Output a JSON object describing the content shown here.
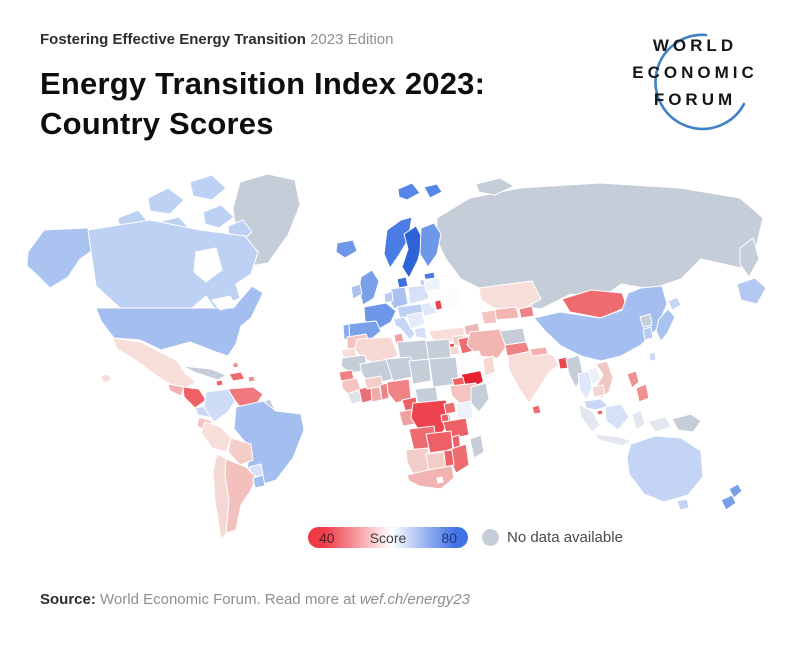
{
  "header": {
    "eyebrow_bold": "Fostering Effective Energy Transition",
    "eyebrow_regular": "2023 Edition",
    "title_line1": "Energy Transition Index 2023:",
    "title_line2": "Country Scores"
  },
  "logo": {
    "line1": "WORLD",
    "line2": "ECONOMIC",
    "line3": "FORUM",
    "arc_color": "#3f82c4"
  },
  "legend": {
    "min_label": "40",
    "mid_label": "Score",
    "max_label": "80",
    "color_low": "#ee3b47",
    "color_mid": "#ffffff",
    "color_high": "#4273e6",
    "no_data_label": "No data available",
    "no_data_color": "#c5cdd9"
  },
  "source": {
    "prefix": "Source:",
    "text": " World Economic Forum. Read more at ",
    "link": "wef.ch/energy23"
  },
  "chart_data": {
    "type": "choropleth_map",
    "title": "Energy Transition Index 2023: Country Scores",
    "scale": {
      "min": 40,
      "max": 80,
      "mid_is_white": true,
      "low_color": "#ee3b47",
      "high_color": "#4273e6",
      "no_data_color": "#c5cdd9"
    },
    "regions": [
      {
        "id": "russia",
        "name": "Russia",
        "color": "#c5cdd9"
      },
      {
        "id": "novaya_zemlya",
        "name": "Novaya Zemlya",
        "color": "#c5cdd9"
      },
      {
        "id": "kamchatka",
        "name": "Kamchatka",
        "color": "#c5cdd9"
      },
      {
        "id": "far_east_patch",
        "name": "Russian Far East blue patch",
        "color": "#b3c8f2"
      },
      {
        "id": "greenland",
        "name": "Greenland",
        "color": "#c5cdd9"
      },
      {
        "id": "canada_arctic_1",
        "name": "Canadian Arctic islands",
        "color": "#bdd1f5"
      },
      {
        "id": "canada_arctic_2",
        "name": "Canadian Arctic islands",
        "color": "#bdd1f5"
      },
      {
        "id": "canada_arctic_3",
        "name": "Canadian Arctic islands",
        "color": "#bdd1f5"
      },
      {
        "id": "canada_arctic_4",
        "name": "Canadian Arctic islands",
        "color": "#bdd1f5"
      },
      {
        "id": "canada_arctic_5",
        "name": "Canadian Arctic islands",
        "color": "#bdd1f5"
      },
      {
        "id": "canada_arctic_6",
        "name": "Canadian Arctic islands",
        "color": "#bdd1f5"
      },
      {
        "id": "alaska",
        "name": "Alaska (United States)",
        "color": "#abc3f1"
      },
      {
        "id": "canada",
        "name": "Canada",
        "color": "#bdd1f5"
      },
      {
        "id": "hudson_bay",
        "name": "Hudson Bay (water)",
        "color": "#ffffff"
      },
      {
        "id": "usa",
        "name": "United States",
        "color": "#a4bef0"
      },
      {
        "id": "great_lakes",
        "name": "Great Lakes (water)",
        "color": "#ffffff"
      },
      {
        "id": "hawaii",
        "name": "Hawaii",
        "color": "#f6dcd8"
      },
      {
        "id": "mexico",
        "name": "Mexico",
        "color": "#f8ded9"
      },
      {
        "id": "guatemala",
        "name": "Guatemala",
        "color": "#f2b0ae"
      },
      {
        "id": "honduras_nicaragua",
        "name": "Honduras / Nicaragua",
        "color": "#ee5f66"
      },
      {
        "id": "costa_rica_panama",
        "name": "Costa Rica / Panama",
        "color": "#c9d8f6"
      },
      {
        "id": "cuba",
        "name": "Cuba",
        "color": "#c5cdd9"
      },
      {
        "id": "hispaniola",
        "name": "Dominican Republic / Haiti",
        "color": "#ee6b6f"
      },
      {
        "id": "jamaica",
        "name": "Jamaica",
        "color": "#ee5f66"
      },
      {
        "id": "puerto_rico",
        "name": "Puerto Rico",
        "color": "#f0908f"
      },
      {
        "id": "trinidad",
        "name": "Trinidad and Tobago",
        "color": "#ee5f66"
      },
      {
        "id": "bahamas",
        "name": "Bahamas",
        "color": "#f0908f"
      },
      {
        "id": "colombia",
        "name": "Colombia",
        "color": "#cedcf7"
      },
      {
        "id": "venezuela",
        "name": "Venezuela",
        "color": "#f0797e"
      },
      {
        "id": "guyana_suriname",
        "name": "Guyana / Suriname",
        "color": "#c5cdd9"
      },
      {
        "id": "ecuador",
        "name": "Ecuador",
        "color": "#f4c4c0"
      },
      {
        "id": "peru",
        "name": "Peru",
        "color": "#f8ded9"
      },
      {
        "id": "brazil",
        "name": "Brazil",
        "color": "#a4bef0"
      },
      {
        "id": "bolivia",
        "name": "Bolivia",
        "color": "#f5cdc8"
      },
      {
        "id": "paraguay",
        "name": "Paraguay",
        "color": "#d6e1f8"
      },
      {
        "id": "chile",
        "name": "Chile",
        "color": "#f5d8d3"
      },
      {
        "id": "argentina",
        "name": "Argentina",
        "color": "#f3c1bd"
      },
      {
        "id": "uruguay",
        "name": "Uruguay",
        "color": "#a4bef0"
      },
      {
        "id": "iceland",
        "name": "Iceland",
        "color": "#6f97e9"
      },
      {
        "id": "svalbard_1",
        "name": "Svalbard",
        "color": "#5585e6"
      },
      {
        "id": "svalbard_2",
        "name": "Svalbard",
        "color": "#5585e6"
      },
      {
        "id": "norway",
        "name": "Norway",
        "color": "#4a7ce4"
      },
      {
        "id": "sweden",
        "name": "Sweden",
        "color": "#2e63d8"
      },
      {
        "id": "finland",
        "name": "Finland",
        "color": "#6f97e9"
      },
      {
        "id": "denmark",
        "name": "Denmark",
        "color": "#3b6fdd"
      },
      {
        "id": "estonia",
        "name": "Estonia",
        "color": "#4a7ce4"
      },
      {
        "id": "latvia_lithuania",
        "name": "Latvia / Lithuania",
        "color": "#b8ccf3"
      },
      {
        "id": "uk",
        "name": "United Kingdom",
        "color": "#7ba0ea"
      },
      {
        "id": "ireland",
        "name": "Ireland",
        "color": "#a9c0f0"
      },
      {
        "id": "france",
        "name": "France",
        "color": "#6f97e9"
      },
      {
        "id": "spain",
        "name": "Spain",
        "color": "#7ba0ea"
      },
      {
        "id": "portugal",
        "name": "Portugal",
        "color": "#8cabee"
      },
      {
        "id": "germany",
        "name": "Germany",
        "color": "#a9c0f0"
      },
      {
        "id": "benelux",
        "name": "Benelux",
        "color": "#b8ccf3"
      },
      {
        "id": "poland",
        "name": "Poland",
        "color": "#d6e1f8"
      },
      {
        "id": "central_europe",
        "name": "Central Europe",
        "color": "#bed1f4"
      },
      {
        "id": "italy",
        "name": "Italy",
        "color": "#c7d6f6"
      },
      {
        "id": "balkans",
        "name": "Balkans",
        "color": "#e4ebfb"
      },
      {
        "id": "romania_bulgaria",
        "name": "Romania / Bulgaria",
        "color": "#dde6fa"
      },
      {
        "id": "greece",
        "name": "Greece",
        "color": "#d6e1f8"
      },
      {
        "id": "belarus",
        "name": "Belarus",
        "color": "#eef2fb"
      },
      {
        "id": "ukraine",
        "name": "Ukraine",
        "color": "#fbfcfe"
      },
      {
        "id": "moldova",
        "name": "Moldova",
        "color": "#e8434e",
        "outlined": true
      },
      {
        "id": "turkey",
        "name": "Turkey",
        "color": "#f8ded9"
      },
      {
        "id": "caucasus",
        "name": "Caucasus",
        "color": "#f0b9b6"
      },
      {
        "id": "syria",
        "name": "Syria",
        "color": "#f3cdc9"
      },
      {
        "id": "lebanon",
        "name": "Lebanon",
        "color": "#e8434e"
      },
      {
        "id": "israel_jordan",
        "name": "Israel / Jordan",
        "color": "#f6d8d3"
      },
      {
        "id": "iraq",
        "name": "Iraq",
        "color": "#ee6b6f"
      },
      {
        "id": "iran",
        "name": "Iran",
        "color": "#f2b5b2"
      },
      {
        "id": "saudi_arabia",
        "name": "Saudi Arabia",
        "color": "#fefefe"
      },
      {
        "id": "yemen",
        "name": "Yemen",
        "color": "#e8212f",
        "outlined": true
      },
      {
        "id": "oman",
        "name": "Oman",
        "color": "#f6d8d3"
      },
      {
        "id": "afghanistan",
        "name": "Afghanistan",
        "color": "#c5cdd9"
      },
      {
        "id": "pakistan",
        "name": "Pakistan",
        "color": "#ee8285"
      },
      {
        "id": "kazakhstan",
        "name": "Kazakhstan",
        "color": "#f8ded9"
      },
      {
        "id": "uzbekistan",
        "name": "Uzbekistan",
        "color": "#f2b5b2"
      },
      {
        "id": "turkmenistan",
        "name": "Turkmenistan",
        "color": "#f3c4c0"
      },
      {
        "id": "kyrgyzstan_tajikistan",
        "name": "Kyrgyzstan / Tajikistan",
        "color": "#ee8285"
      },
      {
        "id": "mongolia",
        "name": "Mongolia",
        "color": "#ee6b6f"
      },
      {
        "id": "china",
        "name": "China",
        "color": "#a4bef0"
      },
      {
        "id": "north_korea",
        "name": "North Korea",
        "color": "#c5cdd9"
      },
      {
        "id": "south_korea",
        "name": "South Korea",
        "color": "#b8ccf3"
      },
      {
        "id": "japan_hokkaido",
        "name": "Japan (Hokkaido)",
        "color": "#c7d6f6"
      },
      {
        "id": "japan_main",
        "name": "Japan",
        "color": "#a9c4f1"
      },
      {
        "id": "taiwan",
        "name": "Taiwan",
        "color": "#c9d8f6"
      },
      {
        "id": "india",
        "name": "India",
        "color": "#f8ded9"
      },
      {
        "id": "nepal",
        "name": "Nepal",
        "color": "#f2b0ae"
      },
      {
        "id": "bangladesh",
        "name": "Bangladesh",
        "color": "#ee4650"
      },
      {
        "id": "sri_lanka",
        "name": "Sri Lanka",
        "color": "#ee6b6f"
      },
      {
        "id": "myanmar",
        "name": "Myanmar",
        "color": "#c5cdd9"
      },
      {
        "id": "thailand",
        "name": "Thailand",
        "color": "#dde6fa"
      },
      {
        "id": "laos",
        "name": "Laos",
        "color": "#eef0f6"
      },
      {
        "id": "vietnam",
        "name": "Vietnam",
        "color": "#f0c6c3"
      },
      {
        "id": "cambodia",
        "name": "Cambodia",
        "color": "#f3d5d0"
      },
      {
        "id": "malaysia",
        "name": "Malaysia",
        "color": "#c9d8f6"
      },
      {
        "id": "singapore",
        "name": "Singapore",
        "color": "#ee5f66"
      },
      {
        "id": "sumatra",
        "name": "Indonesia (Sumatra)",
        "color": "#e2e7f0"
      },
      {
        "id": "java",
        "name": "Indonesia (Java)",
        "color": "#e2e7f0"
      },
      {
        "id": "borneo",
        "name": "Borneo",
        "color": "#d6e1f7"
      },
      {
        "id": "sulawesi",
        "name": "Indonesia (Sulawesi)",
        "color": "#e2e7f0"
      },
      {
        "id": "indonesia_east",
        "name": "Indonesia (east)",
        "color": "#e2e7f0"
      },
      {
        "id": "philippines_luzon",
        "name": "Philippines",
        "color": "#f0908f"
      },
      {
        "id": "philippines_south",
        "name": "Philippines",
        "color": "#f0908f"
      },
      {
        "id": "papua_new_guinea",
        "name": "Papua New Guinea",
        "color": "#c5cdd9"
      },
      {
        "id": "morocco",
        "name": "Morocco",
        "color": "#f3c4c0"
      },
      {
        "id": "western_sahara",
        "name": "Western Sahara",
        "color": "#f8ded9"
      },
      {
        "id": "algeria",
        "name": "Algeria",
        "color": "#f7d7d3"
      },
      {
        "id": "tunisia",
        "name": "Tunisia",
        "color": "#f0a09f"
      },
      {
        "id": "libya",
        "name": "Libya",
        "color": "#c5cdd9"
      },
      {
        "id": "egypt",
        "name": "Egypt",
        "color": "#c5cdd9"
      },
      {
        "id": "mauritania",
        "name": "Mauritania",
        "color": "#c5cdd9"
      },
      {
        "id": "mali",
        "name": "Mali",
        "color": "#c5cdd9"
      },
      {
        "id": "niger",
        "name": "Niger",
        "color": "#c5cdd9"
      },
      {
        "id": "chad",
        "name": "Chad",
        "color": "#c5cdd9"
      },
      {
        "id": "sudan",
        "name": "Sudan",
        "color": "#c5cdd9"
      },
      {
        "id": "eritrea",
        "name": "Eritrea",
        "color": "#ee5f66"
      },
      {
        "id": "ethiopia",
        "name": "Ethiopia",
        "color": "#f3c4c0"
      },
      {
        "id": "somalia",
        "name": "Somalia",
        "color": "#c5cdd9"
      },
      {
        "id": "senegal_gambia",
        "name": "Senegal / Gambia",
        "color": "#ee8285"
      },
      {
        "id": "guinea",
        "name": "Guinea",
        "color": "#f3c4c0"
      },
      {
        "id": "sierra_leone_liberia",
        "name": "Sierra Leone / Liberia",
        "color": "#dfe3ec"
      },
      {
        "id": "ivory_coast",
        "name": "Côte d'Ivoire",
        "color": "#e97078"
      },
      {
        "id": "ghana",
        "name": "Ghana",
        "color": "#f2aaa9"
      },
      {
        "id": "burkina_faso",
        "name": "Burkina Faso",
        "color": "#f5cdc8"
      },
      {
        "id": "togo_benin",
        "name": "Togo / Benin",
        "color": "#ee8285"
      },
      {
        "id": "nigeria",
        "name": "Nigeria",
        "color": "#ee8285"
      },
      {
        "id": "cameroon",
        "name": "Cameroon",
        "color": "#ee5f66"
      },
      {
        "id": "central_african_republic",
        "name": "Central African Republic",
        "color": "#c5cdd9"
      },
      {
        "id": "gabon_congo",
        "name": "Gabon / Congo",
        "color": "#f0a09f"
      },
      {
        "id": "drc",
        "name": "DR Congo",
        "color": "#ee434e"
      },
      {
        "id": "uganda",
        "name": "Uganda",
        "color": "#ee6b6f"
      },
      {
        "id": "kenya",
        "name": "Kenya",
        "color": "#eef2fa"
      },
      {
        "id": "rwanda_burundi",
        "name": "Rwanda / Burundi",
        "color": "#ee5f66"
      },
      {
        "id": "tanzania",
        "name": "Tanzania",
        "color": "#ee5f66"
      },
      {
        "id": "angola",
        "name": "Angola",
        "color": "#ee6b6f"
      },
      {
        "id": "zambia",
        "name": "Zambia",
        "color": "#ee5f66"
      },
      {
        "id": "malawi",
        "name": "Malawi",
        "color": "#ee5f66"
      },
      {
        "id": "mozambique",
        "name": "Mozambique",
        "color": "#ee6b6f"
      },
      {
        "id": "zimbabwe",
        "name": "Zimbabwe",
        "color": "#ee5f66"
      },
      {
        "id": "namibia",
        "name": "Namibia",
        "color": "#f5cdc8"
      },
      {
        "id": "botswana",
        "name": "Botswana",
        "color": "#f5cdc8"
      },
      {
        "id": "south_africa",
        "name": "South Africa",
        "color": "#f2b4b2"
      },
      {
        "id": "lesotho",
        "name": "Lesotho",
        "color": "#ffffff"
      },
      {
        "id": "madagascar",
        "name": "Madagascar",
        "color": "#c5cdd9"
      },
      {
        "id": "australia",
        "name": "Australia",
        "color": "#c3d4f5"
      },
      {
        "id": "tasmania",
        "name": "Tasmania (Australia)",
        "color": "#c3d4f5"
      },
      {
        "id": "new_zealand_north",
        "name": "New Zealand (North Island)",
        "color": "#7ba0ea"
      },
      {
        "id": "new_zealand_south",
        "name": "New Zealand (South Island)",
        "color": "#7ba0ea"
      }
    ]
  }
}
